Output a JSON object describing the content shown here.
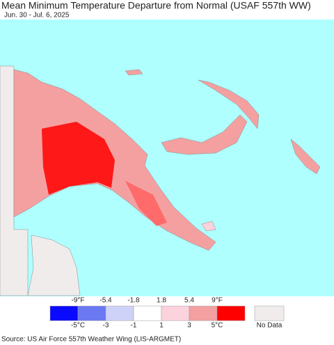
{
  "header": {
    "title": "Mean Minimum Temperature Departure from Normal (USAF 557th WW)",
    "subtitle": "Jun. 30 - Jul. 6, 2025"
  },
  "legend": {
    "colors": [
      "#0a0aff",
      "#6a78f2",
      "#cfd2f8",
      "#ffffff",
      "#fcd2dc",
      "#f4a0a0",
      "#ff0000"
    ],
    "labels_f": [
      "-9°F",
      "-5.4",
      "-1.8",
      "1.8",
      "5.4",
      "9°F"
    ],
    "labels_c": [
      "-5°C",
      "-3",
      "-1",
      "1",
      "3",
      "5°C"
    ],
    "no_data_color": "#f0ecec",
    "no_data_label": "No Data"
  },
  "footer": {
    "source": "Source: US Air Force 557th Weather Wing (LIS-ARGMET)"
  }
}
